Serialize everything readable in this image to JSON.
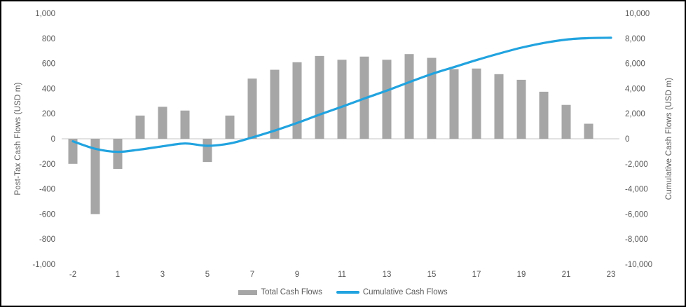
{
  "colors": {
    "bar": "#A6A6A6",
    "line": "#21A3DF",
    "axis_text": "#595959",
    "gridline": "#D9D9D9",
    "border": "#000000",
    "background": "#FFFFFF"
  },
  "axes": {
    "left_title": "Post-Tax Cash Flows (USD m)",
    "right_title": "Cumulative Cash Flows (USD m)"
  },
  "legend": {
    "total": "Total Cash Flows",
    "cumulative": "Cumulative Cash Flows"
  },
  "chart_data": {
    "type": "combo",
    "title": "",
    "categories": [
      -2,
      -1,
      1,
      2,
      3,
      4,
      5,
      6,
      7,
      8,
      9,
      10,
      11,
      12,
      13,
      14,
      15,
      16,
      17,
      18,
      19,
      20,
      21,
      22,
      23
    ],
    "x_tick_labels": [
      "-2",
      "1",
      "3",
      "5",
      "7",
      "9",
      "11",
      "13",
      "15",
      "17",
      "19",
      "21",
      "23"
    ],
    "x_tick_label_indices": [
      0,
      2,
      4,
      6,
      8,
      10,
      12,
      14,
      16,
      18,
      20,
      22,
      24
    ],
    "series": [
      {
        "name": "Total Cash Flows",
        "type": "bar",
        "axis": "left",
        "color": "#A6A6A6",
        "values": [
          -200,
          -600,
          -240,
          185,
          255,
          225,
          -185,
          185,
          480,
          550,
          610,
          660,
          630,
          655,
          630,
          675,
          645,
          555,
          560,
          515,
          470,
          375,
          270,
          120,
          null
        ]
      },
      {
        "name": "Cumulative Cash Flows",
        "type": "line",
        "axis": "right",
        "color": "#21A3DF",
        "values": [
          -200,
          -800,
          -1040,
          -855,
          -600,
          -375,
          -560,
          -375,
          105,
          655,
          1265,
          1925,
          2555,
          3210,
          3840,
          4515,
          5160,
          5715,
          6275,
          6790,
          7260,
          7635,
          7905,
          8025,
          8050
        ]
      }
    ],
    "left_axis": {
      "title": "Post-Tax Cash Flows (USD m)",
      "min": -1000,
      "max": 1000,
      "step": 200,
      "tick_labels": [
        "1,000",
        "800",
        "600",
        "400",
        "200",
        "0",
        "-200",
        "-400",
        "-600",
        "-800",
        "-1,000"
      ]
    },
    "right_axis": {
      "title": "Cumulative Cash Flows (USD m)",
      "min": -10000,
      "max": 10000,
      "step": 2000,
      "tick_labels": [
        "10,000",
        "8,000",
        "6,000",
        "4,000",
        "2,000",
        "0",
        "-2,000",
        "-4,000",
        "-6,000",
        "-8,000",
        "-10,000"
      ]
    },
    "grid": "zero-line-only",
    "legend_position": "bottom-center"
  }
}
